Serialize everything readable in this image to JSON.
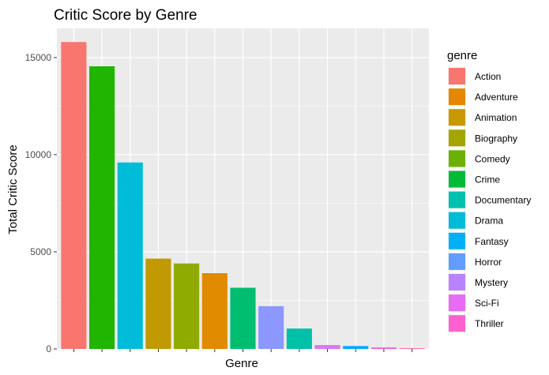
{
  "chart_data": {
    "type": "bar",
    "title": "Critic Score by Genre",
    "xlabel": "Genre",
    "ylabel": "Total Critic Score",
    "ylim": [
      0,
      16500
    ],
    "yticks": [
      0,
      5000,
      10000,
      15000
    ],
    "ytick_labels": [
      "0",
      "5000",
      "10000",
      "15000"
    ],
    "x_tick_labels_shown": false,
    "grid": true,
    "legend_position": "right",
    "legend_title": "genre",
    "genres": [
      {
        "name": "Action",
        "color": "#F8766D"
      },
      {
        "name": "Adventure",
        "color": "#E58700"
      },
      {
        "name": "Animation",
        "color": "#C99800"
      },
      {
        "name": "Biography",
        "color": "#A3A500"
      },
      {
        "name": "Comedy",
        "color": "#6BB100"
      },
      {
        "name": "Crime",
        "color": "#00BA38"
      },
      {
        "name": "Documentary",
        "color": "#00C0AF"
      },
      {
        "name": "Drama",
        "color": "#00BCD8"
      },
      {
        "name": "Fantasy",
        "color": "#00B0F6"
      },
      {
        "name": "Horror",
        "color": "#619CFF"
      },
      {
        "name": "Mystery",
        "color": "#B983FF"
      },
      {
        "name": "Sci-Fi",
        "color": "#E76BF3"
      },
      {
        "name": "Thriller",
        "color": "#FD61D1"
      }
    ],
    "bars": [
      {
        "genre": "Action",
        "value": 15800,
        "color": "#F8766D"
      },
      {
        "genre": "Comedy",
        "value": 14550,
        "color": "#1FB500"
      },
      {
        "genre": "Drama",
        "value": 9600,
        "color": "#00BCD8"
      },
      {
        "genre": "Animation",
        "value": 4650,
        "color": "#C09A00"
      },
      {
        "genre": "Biography",
        "value": 4400,
        "color": "#8FAA00"
      },
      {
        "genre": "Adventure",
        "value": 3900,
        "color": "#E08B00"
      },
      {
        "genre": "Crime",
        "value": 3150,
        "color": "#00BE70"
      },
      {
        "genre": "Horror",
        "value": 2200,
        "color": "#8C98FF"
      },
      {
        "genre": "Documentary",
        "value": 1050,
        "color": "#00C1A7"
      },
      {
        "genre": "Mystery",
        "value": 200,
        "color": "#DA77F2"
      },
      {
        "genre": "Fantasy",
        "value": 150,
        "color": "#00A9FF"
      },
      {
        "genre": "Sci-Fi",
        "value": 80,
        "color": "#F465E3"
      },
      {
        "genre": "Thriller",
        "value": 40,
        "color": "#FF67A4"
      }
    ]
  }
}
